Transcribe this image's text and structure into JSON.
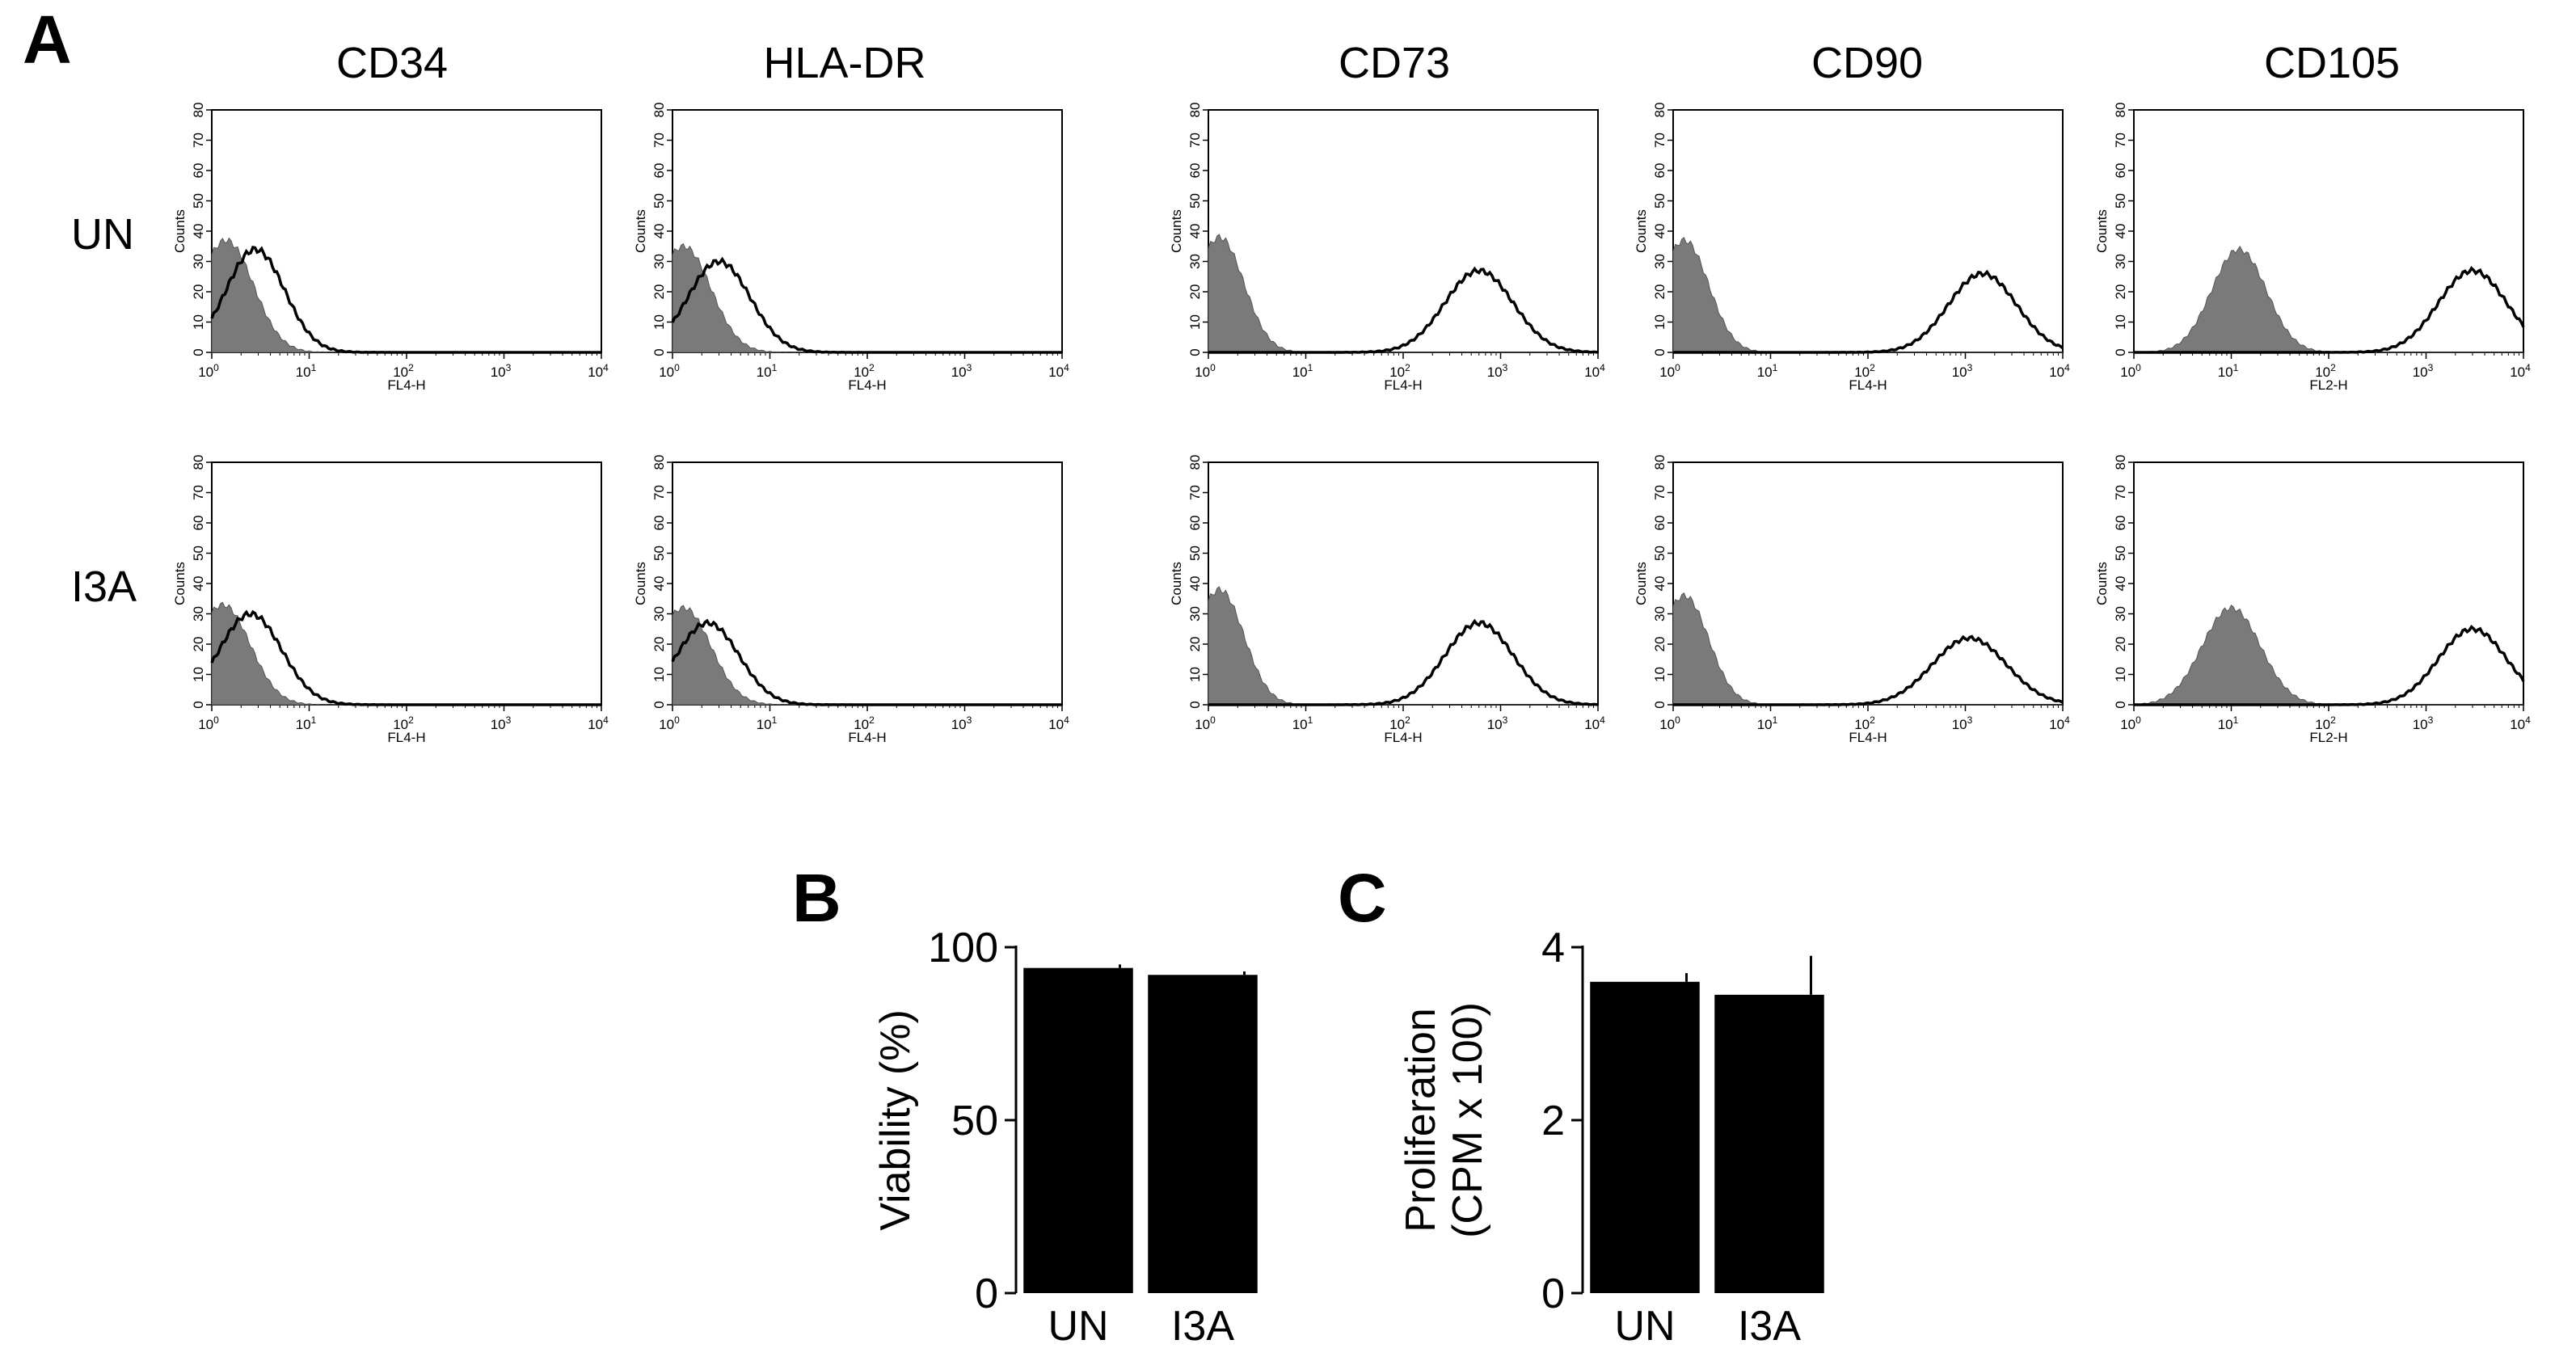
{
  "panel_letters": {
    "a": "A",
    "b": "B",
    "c": "C"
  },
  "chart_data": [
    {
      "panel": "A",
      "type": "area",
      "description_rows": [
        "UN",
        "I3A"
      ],
      "columns": [
        "CD34",
        "HLA-DR",
        "CD73",
        "CD90",
        "CD105"
      ],
      "x_scale": "log",
      "xlim": [
        1,
        10000
      ],
      "ylim": [
        0,
        80
      ],
      "x_ticks": [
        {
          "base": "10",
          "exp": "0"
        },
        {
          "base": "10",
          "exp": "1"
        },
        {
          "base": "10",
          "exp": "2"
        },
        {
          "base": "10",
          "exp": "3"
        },
        {
          "base": "10",
          "exp": "4"
        }
      ],
      "y_ticks": [
        "0",
        "10",
        "20",
        "30",
        "40",
        "50",
        "60",
        "70",
        "80"
      ],
      "ylabel": "Counts",
      "xlabels": {
        "CD34": "FL4-H",
        "HLA-DR": "FL4-H",
        "CD73": "FL4-H",
        "CD90": "FL4-H",
        "CD105": "FL2-H"
      },
      "series_style": {
        "isotype": "filled grey",
        "marker": "black outline"
      },
      "histograms": {
        "UN": {
          "CD34": {
            "isotype": {
              "peak_x": 1.4,
              "peak_y": 37,
              "width_dec": 0.28
            },
            "marker": {
              "peak_x": 2.8,
              "peak_y": 34,
              "width_dec": 0.3
            }
          },
          "HLA-DR": {
            "isotype": {
              "peak_x": 1.3,
              "peak_y": 35,
              "width_dec": 0.28
            },
            "marker": {
              "peak_x": 3.0,
              "peak_y": 30,
              "width_dec": 0.32
            }
          },
          "CD73": {
            "isotype": {
              "peak_x": 1.3,
              "peak_y": 38,
              "width_dec": 0.25
            },
            "marker": {
              "peak_x": 600,
              "peak_y": 27,
              "width_dec": 0.35
            }
          },
          "CD90": {
            "isotype": {
              "peak_x": 1.3,
              "peak_y": 37,
              "width_dec": 0.25
            },
            "marker": {
              "peak_x": 1500,
              "peak_y": 26,
              "width_dec": 0.35
            }
          },
          "CD105": {
            "isotype": {
              "peak_x": 12,
              "peak_y": 34,
              "width_dec": 0.28
            },
            "marker": {
              "peak_x": 3000,
              "peak_y": 27,
              "width_dec": 0.35
            }
          }
        },
        "I3A": {
          "CD34": {
            "isotype": {
              "peak_x": 1.3,
              "peak_y": 33,
              "width_dec": 0.28
            },
            "marker": {
              "peak_x": 2.5,
              "peak_y": 30,
              "width_dec": 0.32
            }
          },
          "HLA-DR": {
            "isotype": {
              "peak_x": 1.3,
              "peak_y": 32,
              "width_dec": 0.28
            },
            "marker": {
              "peak_x": 2.3,
              "peak_y": 27,
              "width_dec": 0.32
            }
          },
          "CD73": {
            "isotype": {
              "peak_x": 1.3,
              "peak_y": 38,
              "width_dec": 0.25
            },
            "marker": {
              "peak_x": 600,
              "peak_y": 27,
              "width_dec": 0.35
            }
          },
          "CD90": {
            "isotype": {
              "peak_x": 1.3,
              "peak_y": 36,
              "width_dec": 0.25
            },
            "marker": {
              "peak_x": 1100,
              "peak_y": 22,
              "width_dec": 0.38
            }
          },
          "CD105": {
            "isotype": {
              "peak_x": 10,
              "peak_y": 32,
              "width_dec": 0.3
            },
            "marker": {
              "peak_x": 3000,
              "peak_y": 25,
              "width_dec": 0.35
            }
          }
        }
      }
    },
    {
      "panel": "B",
      "type": "bar",
      "categories": [
        "UN",
        "I3A"
      ],
      "values": [
        94,
        92
      ],
      "errors": [
        1,
        1
      ],
      "ylabel": "Viability (%)",
      "ylim": [
        0,
        100
      ],
      "yticks": [
        "0",
        "50",
        "100"
      ],
      "bar_color": "#000000"
    },
    {
      "panel": "C",
      "type": "bar",
      "categories": [
        "UN",
        "I3A"
      ],
      "values": [
        3.6,
        3.45
      ],
      "errors": [
        0.1,
        0.45
      ],
      "ylabel_lines": [
        "Proliferation",
        "(CPM x 100)"
      ],
      "ylim": [
        0,
        4
      ],
      "yticks": [
        "0",
        "2",
        "4"
      ],
      "bar_color": "#000000"
    }
  ]
}
